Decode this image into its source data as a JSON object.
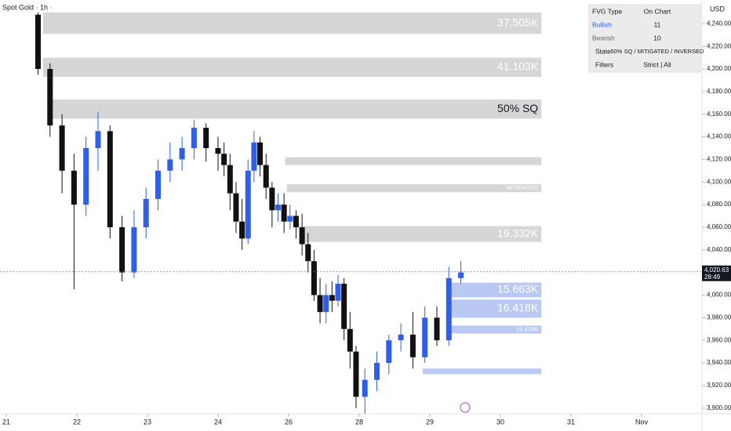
{
  "chart_data": {
    "type": "candlestick",
    "title": "Spot Gold · 1h · ",
    "currency": "USD",
    "up_color": "#2f5fe8",
    "down_color": "#111111",
    "x": [
      21.45,
      21.62,
      21.79,
      21.96,
      22.13,
      22.3,
      22.47,
      22.64,
      22.81,
      22.98,
      23.15,
      23.32,
      23.49,
      23.66,
      23.83,
      24.0,
      24.17,
      24.34,
      24.51,
      24.68,
      24.85,
      25.02,
      25.19,
      25.36,
      25.53,
      25.7,
      25.87,
      26.04,
      26.21,
      26.38,
      26.55,
      26.72,
      26.89,
      27.06,
      27.23,
      27.4,
      27.57,
      27.74,
      27.91,
      28.08,
      28.25,
      28.42,
      28.59,
      28.76,
      28.93,
      29.1,
      29.27,
      29.44
    ],
    "open": [
      4248,
      4200,
      4150,
      4110,
      4080,
      4130,
      4145,
      4060,
      4020,
      4060,
      4085,
      4110,
      4120,
      4130,
      4148,
      4130,
      4125,
      4115,
      4090,
      4065,
      4050,
      4110,
      4135,
      4115,
      4095,
      4075,
      4080,
      4065,
      4070,
      4060,
      4045,
      4030,
      4000,
      3985,
      4000,
      3995,
      4010,
      3970,
      3950,
      3910,
      3925,
      3940,
      3960,
      3965,
      3945,
      3980,
      3960,
      4015
    ],
    "high": [
      4250,
      4205,
      4160,
      4125,
      4140,
      4162,
      4150,
      4070,
      4075,
      4095,
      4120,
      4135,
      4140,
      4155,
      4152,
      4140,
      4135,
      4125,
      4100,
      4085,
      4120,
      4145,
      4140,
      4125,
      4100,
      4090,
      4090,
      4080,
      4075,
      4072,
      4055,
      4040,
      4015,
      4010,
      4012,
      4018,
      4015,
      3985,
      3955,
      3935,
      3950,
      3965,
      3975,
      3985,
      3990,
      3990,
      4025,
      4030
    ],
    "low": [
      4195,
      4140,
      4090,
      4005,
      4070,
      4110,
      4050,
      4012,
      4015,
      4050,
      4075,
      4100,
      4110,
      4120,
      4118,
      4110,
      4105,
      4075,
      4055,
      4040,
      4045,
      4100,
      4105,
      4085,
      4060,
      4065,
      4055,
      4058,
      4050,
      4035,
      4020,
      3995,
      3975,
      3975,
      3985,
      3990,
      3960,
      3935,
      3900,
      3895,
      3915,
      3930,
      3950,
      3935,
      3940,
      3955,
      3955,
      4010
    ],
    "close": [
      4200,
      4150,
      4110,
      4080,
      4130,
      4145,
      4060,
      4020,
      4060,
      4085,
      4110,
      4120,
      4130,
      4148,
      4130,
      4125,
      4115,
      4090,
      4065,
      4050,
      4110,
      4135,
      4115,
      4095,
      4075,
      4080,
      4065,
      4070,
      4060,
      4045,
      4030,
      4000,
      3985,
      4000,
      3995,
      4010,
      3970,
      3950,
      3910,
      3925,
      3940,
      3960,
      3965,
      3945,
      3980,
      3960,
      4015,
      4020
    ],
    "zones": [
      {
        "kind": "bearish",
        "start": 21.52,
        "end": 30.58,
        "top": 4250,
        "bottom": 4231,
        "label": "37.505K"
      },
      {
        "kind": "bearish",
        "start": 21.52,
        "end": 30.58,
        "top": 4210,
        "bottom": 4193,
        "label": "41.103K"
      },
      {
        "kind": "bearish",
        "start": 21.6,
        "end": 30.58,
        "top": 4173,
        "bottom": 4156,
        "label": "50% SQ"
      },
      {
        "kind": "bearish",
        "start": 25.9,
        "end": 30.58,
        "top": 4122,
        "bottom": 4115
      },
      {
        "kind": "bearish",
        "start": 25.95,
        "end": 30.58,
        "top": 4098,
        "bottom": 4091,
        "label": "MITIGATED"
      },
      {
        "kind": "bearish",
        "start": 26.4,
        "end": 30.58,
        "top": 4061,
        "bottom": 4047,
        "label": "19.332K"
      },
      {
        "kind": "bullish",
        "start": 29.3,
        "end": 30.58,
        "top": 4011,
        "bottom": 3998,
        "label": "15.663K"
      },
      {
        "kind": "bullish",
        "start": 29.3,
        "end": 30.58,
        "top": 3996,
        "bottom": 3980,
        "label": "16.418K"
      },
      {
        "kind": "bullish",
        "start": 29.3,
        "end": 30.58,
        "top": 3973,
        "bottom": 3966,
        "label": "15.433K"
      },
      {
        "kind": "bullish",
        "start": 28.9,
        "end": 30.58,
        "top": 3935,
        "bottom": 3930
      }
    ],
    "last_price": {
      "value": 4020.63,
      "label": "4,020.63"
    },
    "countdown": "28:49",
    "xlim": [
      20.91,
      32.86
    ],
    "xticks": [
      {
        "value": 21,
        "label": "21"
      },
      {
        "value": 22,
        "label": "22"
      },
      {
        "value": 23,
        "label": "23"
      },
      {
        "value": 24,
        "label": "24"
      },
      {
        "value": 26,
        "label": "26"
      },
      {
        "value": 28,
        "label": "28"
      },
      {
        "value": 29,
        "label": "29"
      },
      {
        "value": 30,
        "label": "30"
      },
      {
        "value": 31,
        "label": "31"
      },
      {
        "value": 32,
        "label": "Nov"
      }
    ],
    "ylim": [
      3895,
      4261
    ],
    "yticks": [
      {
        "value": 3900,
        "label": "3,900.00"
      },
      {
        "value": 3920,
        "label": "3,920.00"
      },
      {
        "value": 3940,
        "label": "3,940.00"
      },
      {
        "value": 3960,
        "label": "3,960.00"
      },
      {
        "value": 3980,
        "label": "3,980.00"
      },
      {
        "value": 4000,
        "label": "4,000.00"
      },
      {
        "value": 4020,
        "label": "4,020.00"
      },
      {
        "value": 4040,
        "label": "4,040.00"
      },
      {
        "value": 4060,
        "label": "4,060.00"
      },
      {
        "value": 4080,
        "label": "4,080.00"
      },
      {
        "value": 4100,
        "label": "4,100.00"
      },
      {
        "value": 4120,
        "label": "4,120.00"
      },
      {
        "value": 4140,
        "label": "4,140.00"
      },
      {
        "value": 4160,
        "label": "4,160.00"
      },
      {
        "value": 4180,
        "label": "4,180.00"
      },
      {
        "value": 4200,
        "label": "4,200.00"
      },
      {
        "value": 4220,
        "label": "4,220.00"
      },
      {
        "value": 4240,
        "label": "4,240.00"
      }
    ],
    "table": [
      [
        "FVG Type",
        "On Chart"
      ],
      [
        "Bullish",
        "11"
      ],
      [
        "Bearish",
        "10"
      ],
      [
        "State",
        "50% SQ / MITIGATED / INVERSED"
      ],
      [
        "Filters",
        "Strict | All"
      ]
    ]
  }
}
